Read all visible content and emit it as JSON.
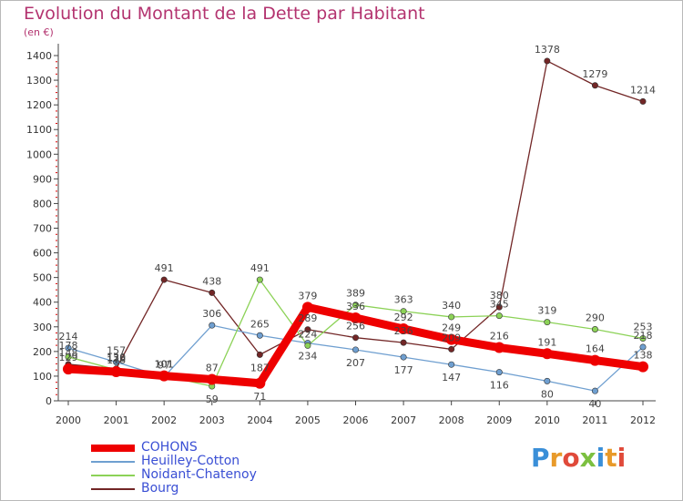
{
  "header": {
    "title": "Evolution du Montant de la Dette par Habitant",
    "unit": "(en €)"
  },
  "logo": {
    "text": "Proxiti",
    "colors": [
      "#3a8fd8",
      "#e89a2a",
      "#e04a3a",
      "#7cc040",
      "#3a8fd8",
      "#e89a2a",
      "#e04a3a"
    ]
  },
  "chart_data": {
    "type": "line",
    "title": "Evolution du Montant de la Dette par Habitant",
    "subtitle": "(en €)",
    "xlabel": "",
    "ylabel": "",
    "ylim": [
      0,
      1400
    ],
    "yticks": [
      0,
      100,
      200,
      300,
      400,
      500,
      600,
      700,
      800,
      900,
      1000,
      1100,
      1200,
      1300,
      1400
    ],
    "grid": false,
    "legend_position": "bottom-left",
    "x": [
      "2000",
      "2001",
      "2002",
      "2003",
      "2004",
      "2005",
      "2006",
      "2007",
      "2008",
      "2009",
      "2010",
      "2011",
      "2012"
    ],
    "series": [
      {
        "name": "COHONS",
        "color": "#ee0000",
        "values": [
          129,
          118,
          101,
          87,
          71,
          379,
          336,
          292,
          249,
          216,
          191,
          164,
          138
        ],
        "label_offsets": [
          -1,
          -1,
          -1,
          -1,
          1,
          -1,
          -1,
          -1,
          -1,
          -1,
          -1,
          -1,
          -1
        ]
      },
      {
        "name": "Heuilley-Cotton",
        "color": "#6f9fd0",
        "values": [
          214,
          157,
          97,
          306,
          265,
          234,
          207,
          177,
          147,
          116,
          80,
          40,
          218
        ],
        "label_offsets": [
          -1,
          -1,
          -1,
          -1,
          -1,
          1,
          1,
          1,
          1,
          1,
          1,
          1,
          -1
        ]
      },
      {
        "name": "Noidant-Chatenoy",
        "color": "#8cd257",
        "values": [
          178,
          126,
          101,
          59,
          491,
          224,
          389,
          363,
          340,
          345,
          319,
          290,
          253
        ],
        "label_offsets": [
          -1,
          -1,
          -1,
          1,
          -1,
          -1,
          -1,
          -1,
          -1,
          -1,
          -1,
          -1,
          -1
        ]
      },
      {
        "name": "Bourg",
        "color": "#722626",
        "values": [
          148,
          130,
          491,
          438,
          187,
          289,
          256,
          236,
          209,
          380,
          1378,
          1279,
          1214
        ],
        "label_offsets": [
          -1,
          -1,
          -1,
          -1,
          1,
          -1,
          -1,
          -1,
          -1,
          -1,
          -1,
          -1,
          -1
        ]
      }
    ]
  }
}
